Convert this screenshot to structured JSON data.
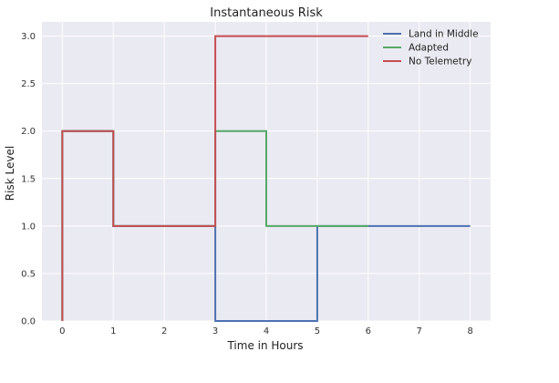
{
  "chart_data": {
    "type": "line",
    "step": true,
    "title": "Instantaneous Risk",
    "xlabel": "Time in Hours",
    "ylabel": "Risk Level",
    "xlim": [
      -0.4,
      8.4
    ],
    "ylim": [
      0,
      3.15
    ],
    "x_ticks": [
      0,
      1,
      2,
      3,
      4,
      5,
      6,
      7,
      8
    ],
    "x_tick_labels": [
      "0",
      "1",
      "2",
      "3",
      "4",
      "5",
      "6",
      "7",
      "8"
    ],
    "y_ticks": [
      0,
      0.5,
      1,
      1.5,
      2,
      2.5,
      3
    ],
    "y_tick_labels": [
      "0.0",
      "0.5",
      "1.0",
      "1.5",
      "2.0",
      "2.5",
      "3.0"
    ],
    "grid": true,
    "legend_position": "top-right",
    "series": [
      {
        "name": "Land in Middle",
        "color": "#4c72b0",
        "points": [
          [
            0,
            0
          ],
          [
            0,
            2
          ],
          [
            1,
            2
          ],
          [
            1,
            1
          ],
          [
            3,
            1
          ],
          [
            3,
            0
          ],
          [
            4,
            0
          ],
          [
            5,
            0
          ],
          [
            5,
            1
          ],
          [
            6,
            1
          ],
          [
            7,
            1
          ],
          [
            8,
            1
          ]
        ]
      },
      {
        "name": "Adapted",
        "color": "#55a868",
        "points": [
          [
            0,
            0
          ],
          [
            0,
            2
          ],
          [
            1,
            2
          ],
          [
            1,
            1
          ],
          [
            3,
            1
          ],
          [
            3,
            2
          ],
          [
            4,
            2
          ],
          [
            4,
            1
          ],
          [
            5,
            1
          ],
          [
            6,
            1
          ]
        ]
      },
      {
        "name": "No Telemetry",
        "color": "#c44e52",
        "points": [
          [
            0,
            0
          ],
          [
            0,
            2
          ],
          [
            1,
            2
          ],
          [
            1,
            1
          ],
          [
            3,
            1
          ],
          [
            3,
            3
          ],
          [
            6,
            3
          ]
        ]
      }
    ]
  }
}
